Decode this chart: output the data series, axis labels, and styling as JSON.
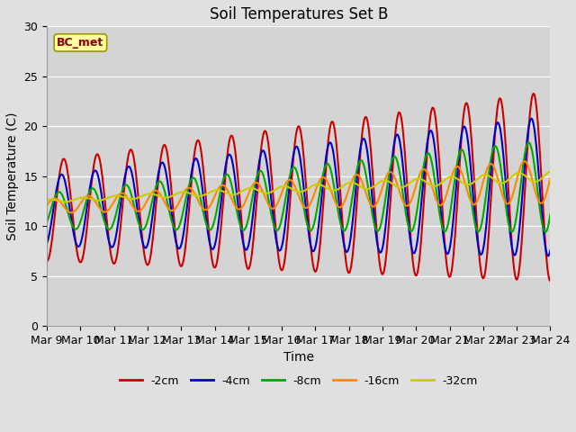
{
  "title": "Soil Temperatures Set B",
  "xlabel": "Time",
  "ylabel": "Soil Temperature (C)",
  "ylim": [
    0,
    30
  ],
  "annotation": "BC_met",
  "fig_facecolor": "#e0e0e0",
  "plot_facecolor": "#d4d4d4",
  "legend_labels": [
    "-2cm",
    "-4cm",
    "-8cm",
    "-16cm",
    "-32cm"
  ],
  "legend_colors": [
    "#cc0000",
    "#0000cc",
    "#00aa00",
    "#ff8800",
    "#cccc00"
  ],
  "line_width": 1.5,
  "x_tick_labels": [
    "Mar 9",
    "Mar 10",
    "Mar 11",
    "Mar 12",
    "Mar 13",
    "Mar 14",
    "Mar 15",
    "Mar 16",
    "Mar 17",
    "Mar 18",
    "Mar 19",
    "Mar 20",
    "Mar 21",
    "Mar 22",
    "Mar 23",
    "Mar 24"
  ],
  "n_days": 15,
  "yticks": [
    0,
    5,
    10,
    15,
    20,
    25,
    30
  ]
}
